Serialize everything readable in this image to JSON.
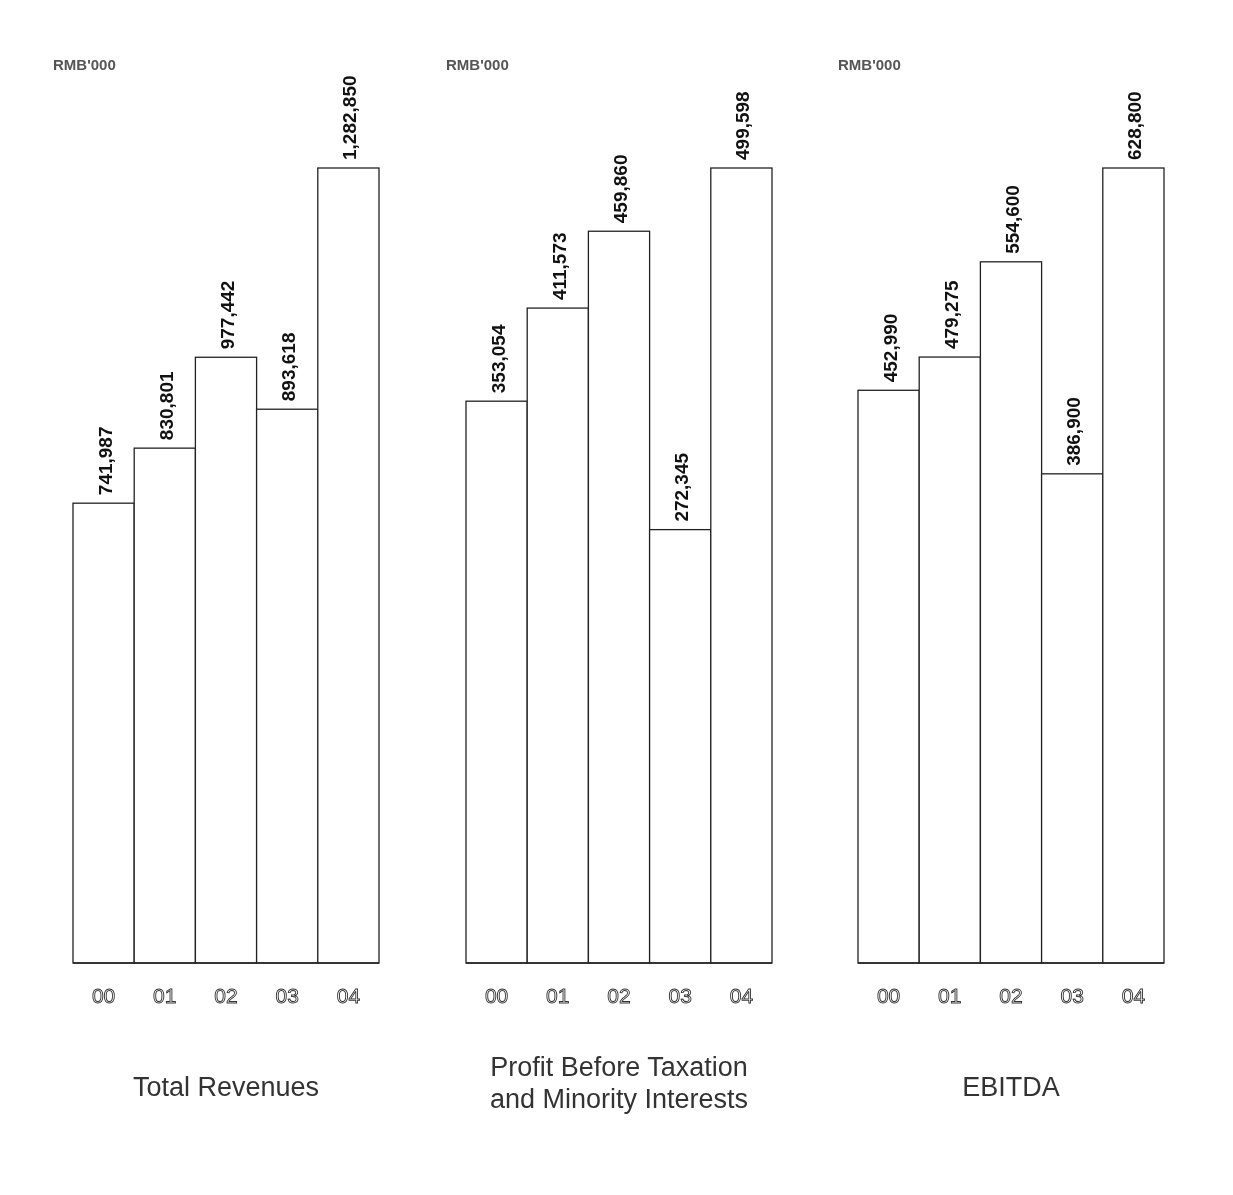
{
  "chart_data": [
    {
      "type": "bar",
      "title": "Total Revenues",
      "ylabel": "RMB'000",
      "categories": [
        "00",
        "01",
        "02",
        "03",
        "04"
      ],
      "values": [
        741987,
        830801,
        977442,
        893618,
        1282850
      ],
      "value_labels": [
        "741,987",
        "830,801",
        "977,442",
        "893,618",
        "1,282,850"
      ],
      "color": "#ffffff"
    },
    {
      "type": "bar",
      "title": "Profit Before Taxation and Minority Interests",
      "ylabel": "RMB'000",
      "categories": [
        "00",
        "01",
        "02",
        "03",
        "04"
      ],
      "values": [
        353054,
        411573,
        459860,
        272345,
        499598
      ],
      "value_labels": [
        "353,054",
        "411,573",
        "459,860",
        "272,345",
        "499,598"
      ],
      "color": "#ffffff"
    },
    {
      "type": "bar",
      "title": "EBITDA",
      "ylabel": "RMB'000",
      "categories": [
        "00",
        "01",
        "02",
        "03",
        "04"
      ],
      "values": [
        452990,
        479275,
        554600,
        386900,
        628800
      ],
      "value_labels": [
        "452,990",
        "479,275",
        "554,600",
        "386,900",
        "628,800"
      ],
      "color": "#ffffff"
    }
  ]
}
